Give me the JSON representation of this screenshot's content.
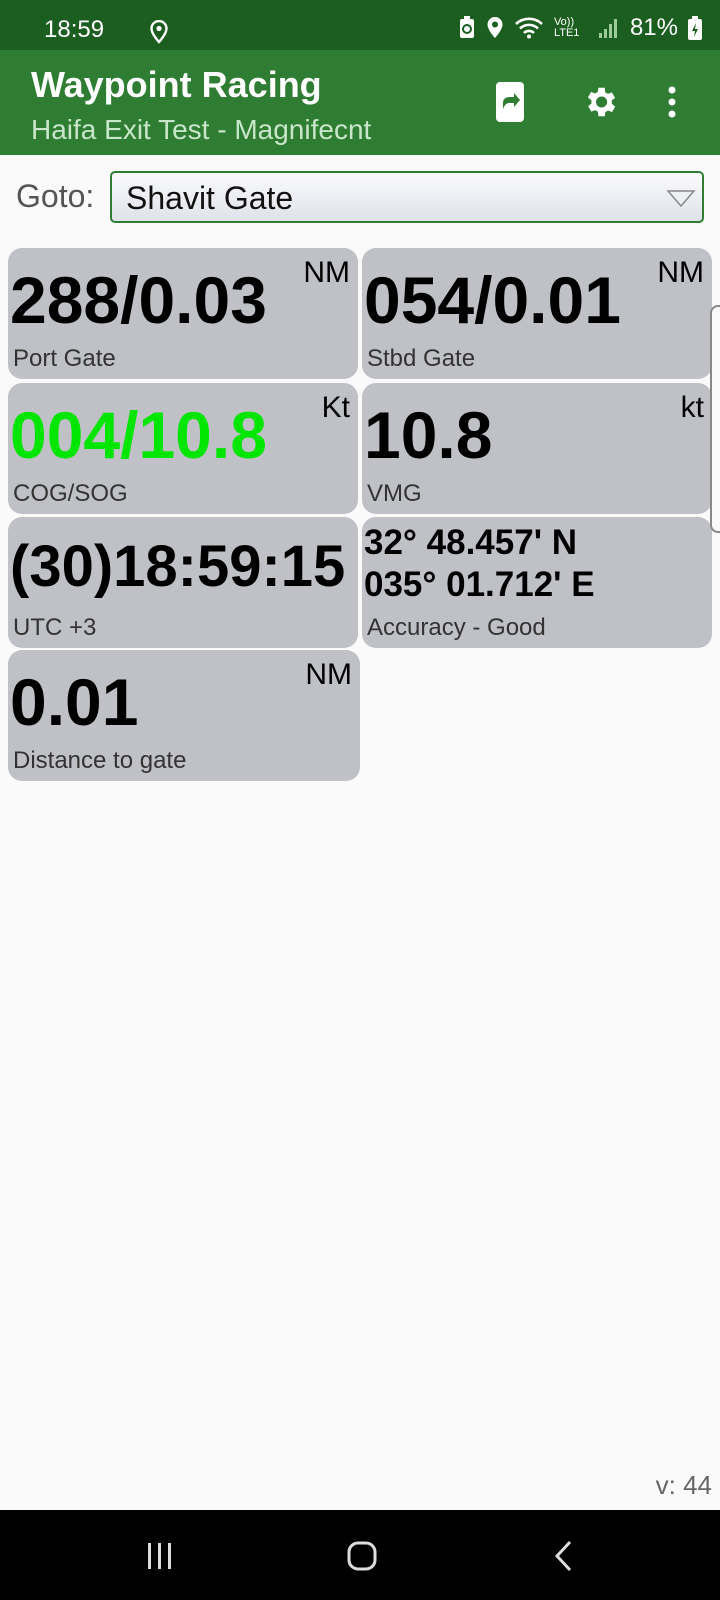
{
  "status_bar": {
    "time": "18:59",
    "battery": "81%",
    "network": "Vo)) LTE1"
  },
  "action_bar": {
    "title": "Waypoint Racing",
    "subtitle": "Haifa Exit Test - Magnifecnt"
  },
  "goto": {
    "label": "Goto:",
    "selected": "Shavit Gate"
  },
  "tiles": [
    {
      "value": "288/0.03",
      "unit": "NM",
      "label": "Port Gate"
    },
    {
      "value": "054/0.01",
      "unit": "NM",
      "label": "Stbd Gate"
    },
    {
      "value": "004/10.8",
      "unit": "Kt",
      "label": "COG/SOG",
      "value_color": "#00e600"
    },
    {
      "value": "10.8",
      "unit": "kt",
      "label": "VMG"
    },
    {
      "value": "(30)18:59:15",
      "unit": "",
      "label": "UTC +3"
    },
    {
      "lat": "32° 48.457' N",
      "lon": "035° 01.712' E",
      "label": "Accuracy - Good"
    },
    {
      "value": "0.01",
      "unit": "NM",
      "label": "Distance to gate"
    }
  ],
  "version": "v: 44",
  "colors": {
    "status_bar": "#1b5e20",
    "action_bar": "#2e7d32",
    "tile": "#bfc1c6",
    "accent_green": "#00e600"
  }
}
